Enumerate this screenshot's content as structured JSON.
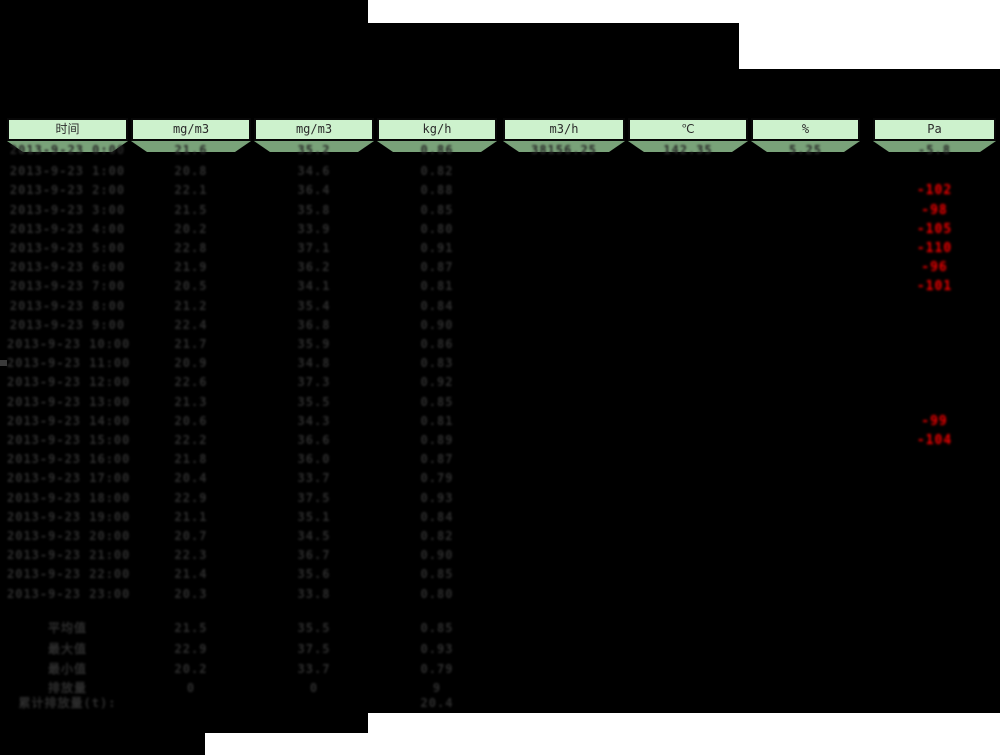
{
  "colors": {
    "page_background": "#ffffff",
    "backdrop_black": "#000000",
    "header_bg": "#cdf2cd",
    "strip_bg": "#79a279",
    "data_text": "#2e2e2e",
    "red_text": "#f90000",
    "header_text": "#2c2c2c"
  },
  "table": {
    "headers": [
      "时间",
      "mg/m3",
      "mg/m3",
      "kg/h",
      "m3/h",
      "℃",
      "%",
      "Pa"
    ],
    "first_row": {
      "c1": "2013-9-23 0:00",
      "c2": "21.6",
      "c3": "35.2",
      "c4": "0.86",
      "c5": "38156.25",
      "c6": "142.35",
      "c7": "5.25",
      "c8": "-5.8"
    },
    "rows": [
      {
        "t": "2013-9-23 1:00",
        "a": "20.8",
        "b": "34.6",
        "c": "0.82",
        "pa": ""
      },
      {
        "t": "2013-9-23 2:00",
        "a": "22.1",
        "b": "36.4",
        "c": "0.88",
        "pa": "-102"
      },
      {
        "t": "2013-9-23 3:00",
        "a": "21.5",
        "b": "35.8",
        "c": "0.85",
        "pa": "-98"
      },
      {
        "t": "2013-9-23 4:00",
        "a": "20.2",
        "b": "33.9",
        "c": "0.80",
        "pa": "-105"
      },
      {
        "t": "2013-9-23 5:00",
        "a": "22.8",
        "b": "37.1",
        "c": "0.91",
        "pa": "-110"
      },
      {
        "t": "2013-9-23 6:00",
        "a": "21.9",
        "b": "36.2",
        "c": "0.87",
        "pa": "-96"
      },
      {
        "t": "2013-9-23 7:00",
        "a": "20.5",
        "b": "34.1",
        "c": "0.81",
        "pa": "-101"
      },
      {
        "t": "2013-9-23 8:00",
        "a": "21.2",
        "b": "35.4",
        "c": "0.84",
        "pa": ""
      },
      {
        "t": "2013-9-23 9:00",
        "a": "22.4",
        "b": "36.8",
        "c": "0.90",
        "pa": ""
      },
      {
        "t": "2013-9-23 10:00",
        "a": "21.7",
        "b": "35.9",
        "c": "0.86",
        "pa": ""
      },
      {
        "t": "2013-9-23 11:00",
        "a": "20.9",
        "b": "34.8",
        "c": "0.83",
        "pa": ""
      },
      {
        "t": "2013-9-23 12:00",
        "a": "22.6",
        "b": "37.3",
        "c": "0.92",
        "pa": ""
      },
      {
        "t": "2013-9-23 13:00",
        "a": "21.3",
        "b": "35.5",
        "c": "0.85",
        "pa": ""
      },
      {
        "t": "2013-9-23 14:00",
        "a": "20.6",
        "b": "34.3",
        "c": "0.81",
        "pa": "-99"
      },
      {
        "t": "2013-9-23 15:00",
        "a": "22.2",
        "b": "36.6",
        "c": "0.89",
        "pa": "-104"
      },
      {
        "t": "2013-9-23 16:00",
        "a": "21.8",
        "b": "36.0",
        "c": "0.87",
        "pa": ""
      },
      {
        "t": "2013-9-23 17:00",
        "a": "20.4",
        "b": "33.7",
        "c": "0.79",
        "pa": ""
      },
      {
        "t": "2013-9-23 18:00",
        "a": "22.9",
        "b": "37.5",
        "c": "0.93",
        "pa": ""
      },
      {
        "t": "2013-9-23 19:00",
        "a": "21.1",
        "b": "35.1",
        "c": "0.84",
        "pa": ""
      },
      {
        "t": "2013-9-23 20:00",
        "a": "20.7",
        "b": "34.5",
        "c": "0.82",
        "pa": ""
      },
      {
        "t": "2013-9-23 21:00",
        "a": "22.3",
        "b": "36.7",
        "c": "0.90",
        "pa": ""
      },
      {
        "t": "2013-9-23 22:00",
        "a": "21.4",
        "b": "35.6",
        "c": "0.85",
        "pa": ""
      },
      {
        "t": "2013-9-23 23:00",
        "a": "20.3",
        "b": "33.8",
        "c": "0.80",
        "pa": ""
      }
    ],
    "summary": [
      {
        "label": "平均值",
        "a": "21.5",
        "b": "35.5",
        "c": "0.85"
      },
      {
        "label": "最大值",
        "a": "22.9",
        "b": "37.5",
        "c": "0.93"
      },
      {
        "label": "最小值",
        "a": "20.2",
        "b": "33.7",
        "c": "0.79"
      },
      {
        "label": "排放量",
        "a": "0",
        "b": "0",
        "c": "9"
      },
      {
        "label": "累计排放量(t):",
        "a": "",
        "b": "",
        "c": "20.4"
      }
    ]
  }
}
